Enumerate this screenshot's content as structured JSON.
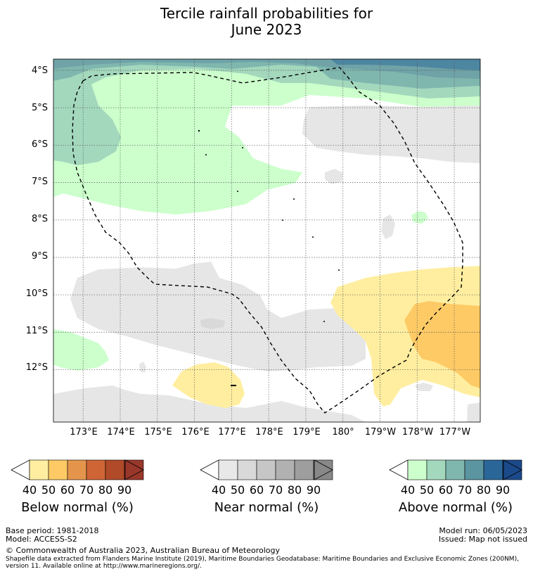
{
  "title": {
    "line1": "Tercile rainfall probabilities for",
    "line2": "June 2023"
  },
  "map": {
    "lat_labels": [
      "4°S",
      "5°S",
      "6°S",
      "7°S",
      "8°S",
      "9°S",
      "10°S",
      "11°S",
      "12°S"
    ],
    "lon_labels": [
      "173°E",
      "174°E",
      "175°E",
      "176°E",
      "177°E",
      "178°E",
      "179°E",
      "180°",
      "179°W",
      "178°W",
      "177°W"
    ],
    "lon_range": [
      172.2,
      183.7
    ],
    "lat_range": [
      -3.7,
      -13.4
    ],
    "boundary_label": "EEZ boundary (dashed)"
  },
  "legends": {
    "below": {
      "caption": "Below normal (%)",
      "ticks": [
        "40",
        "50",
        "60",
        "70",
        "80",
        "90"
      ],
      "colors": [
        "#ffeea0",
        "#fdca65",
        "#e5954b",
        "#cf6535",
        "#b04a28",
        "#99372a"
      ]
    },
    "near": {
      "caption": "Near normal (%)",
      "ticks": [
        "40",
        "50",
        "60",
        "70",
        "80",
        "90"
      ],
      "colors": [
        "#e8e8e8",
        "#d9d9d9",
        "#c6c6c6",
        "#b1b1b1",
        "#9e9e9e",
        "#888888"
      ]
    },
    "above": {
      "caption": "Above normal (%)",
      "ticks": [
        "40",
        "50",
        "60",
        "70",
        "80",
        "90"
      ],
      "colors": [
        "#ccffcc",
        "#a3d8bd",
        "#7fb7af",
        "#5a95a1",
        "#2b6699",
        "#1b4a8a"
      ]
    }
  },
  "footer": {
    "base_period": "Base period: 1981-2018",
    "model": "Model: ACCESS-S2",
    "model_run": "Model run: 06/05/2023",
    "issued": "Issued: Map not issued",
    "copyright": "© Commonwealth of Australia 2023, Australian Bureau of Meteorology",
    "shapefile_line1": "Shapefile data extracted from Flanders Marine Institute (2019), Maritime Boundaries Geodatabase: Maritime Boundaries and Exclusive Economic Zones (200NM),",
    "shapefile_line2": "version 11. Available online at http://www.marineregions.org/."
  }
}
